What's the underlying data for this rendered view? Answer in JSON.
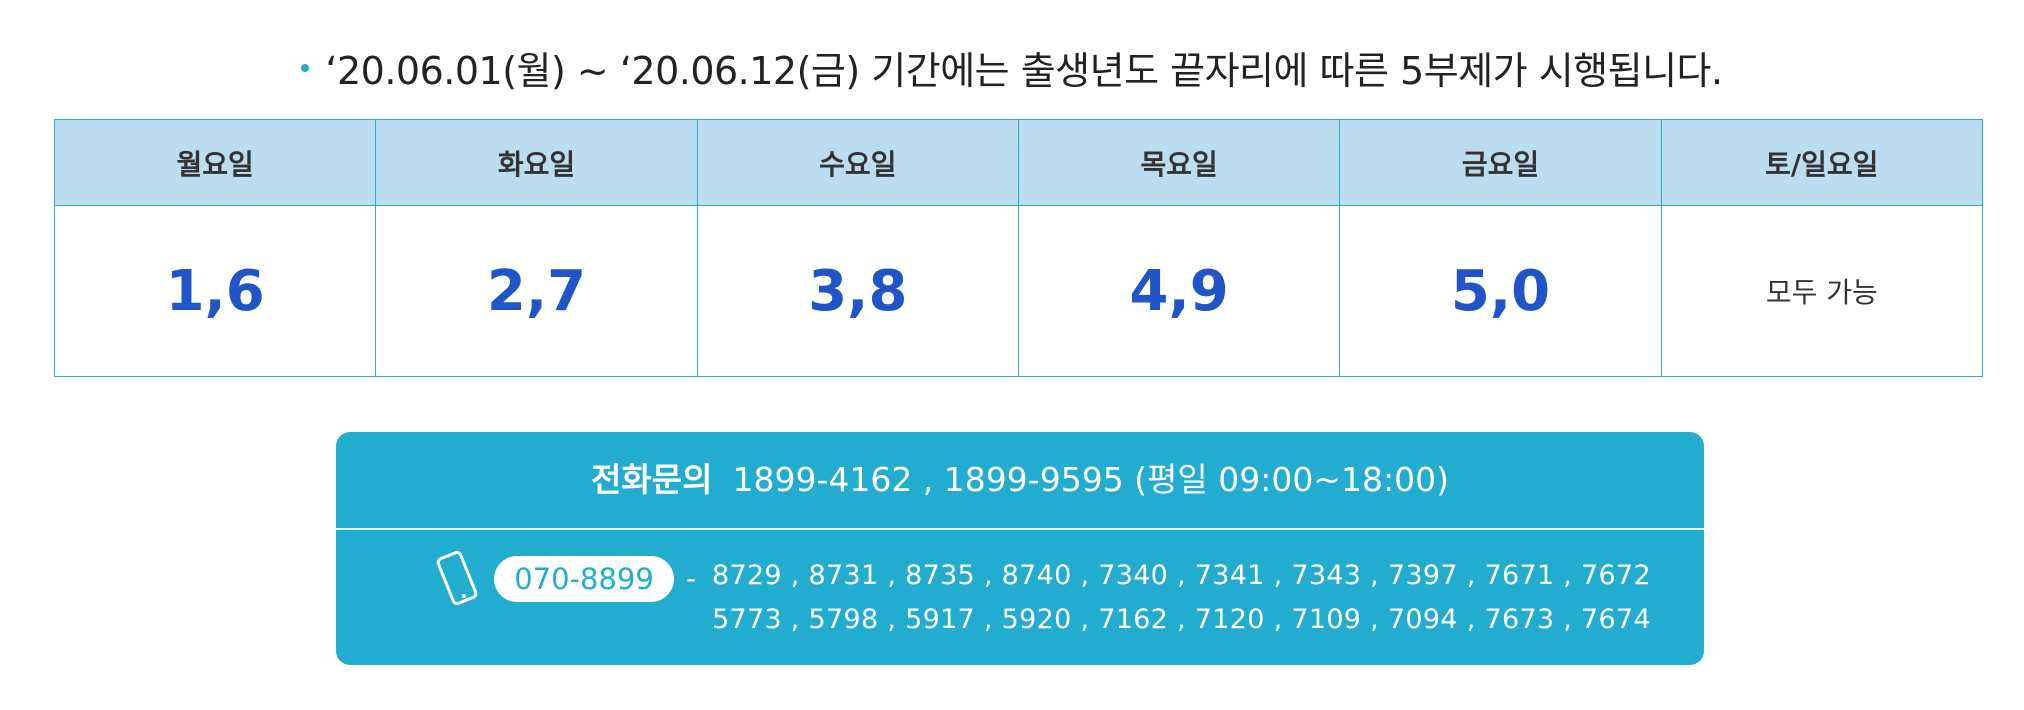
{
  "notice": {
    "text": "‘20.06.01(월) ~ ‘20.06.12(금) 기간에는 출생년도 끝자리에 따른 5부제가 시행됩니다."
  },
  "table": {
    "headers": [
      "월요일",
      "화요일",
      "수요일",
      "목요일",
      "금요일",
      "토/일요일"
    ],
    "rows": [
      [
        "1,6",
        "2,7",
        "3,8",
        "4,9",
        "5,0",
        "모두 가능"
      ]
    ]
  },
  "contact": {
    "label": "전화문의",
    "numbers": "1899-4162 , 1899-9595 (평일 09:00~18:00)",
    "mobile_prefix": "070-8899",
    "separator": "-",
    "extensions": [
      "8729 , 8731 , 8735 , 8740 , 7340 , 7341 , 7343 , 7397 , 7671 , 7672",
      "5773 , 5798 , 5917 , 5920 , 7162 , 7120 , 7109 , 7094 , 7673 , 7674"
    ]
  }
}
